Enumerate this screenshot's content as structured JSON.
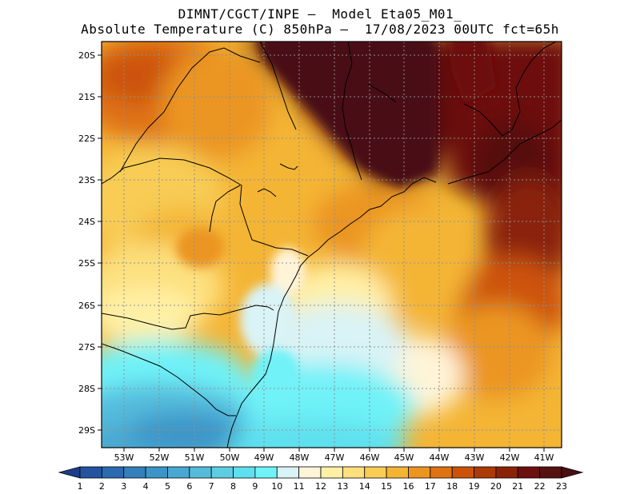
{
  "header": {
    "line1": "DIMNT/CGCT/INPE –  Model Eta05_M01_",
    "line2": "Absolute Temperature (C) 850hPa –  17/08/2023 00UTC fct=65h"
  },
  "map": {
    "lat_labels": [
      "20S",
      "21S",
      "22S",
      "23S",
      "24S",
      "25S",
      "26S",
      "27S",
      "28S",
      "29S"
    ],
    "lon_labels": [
      "53W",
      "52W",
      "51W",
      "50W",
      "49W",
      "48W",
      "47W",
      "46W",
      "45W",
      "44W",
      "43W",
      "42W",
      "41W"
    ],
    "field": "Absolute Temperature (C)",
    "level": "850hPa"
  },
  "colorbar": {
    "labels": [
      "1",
      "2",
      "3",
      "4",
      "5",
      "6",
      "7",
      "8",
      "9",
      "10",
      "11",
      "12",
      "13",
      "14",
      "15",
      "16",
      "17",
      "18",
      "19",
      "20",
      "21",
      "22",
      "23"
    ],
    "colors": [
      "#1e3c8c",
      "#2453a0",
      "#2b6ab0",
      "#3380bd",
      "#3c95c8",
      "#48a8d2",
      "#55bbdc",
      "#5ecde4",
      "#5fe0ee",
      "#6ff2f8",
      "#d9f3f6",
      "#fff4d8",
      "#fff0a6",
      "#fde07e",
      "#f8cc55",
      "#f4b535",
      "#eb9520",
      "#df7212",
      "#cc5208",
      "#ac3a06",
      "#8a2408",
      "#6d1010",
      "#561111",
      "#4a0f12"
    ]
  }
}
